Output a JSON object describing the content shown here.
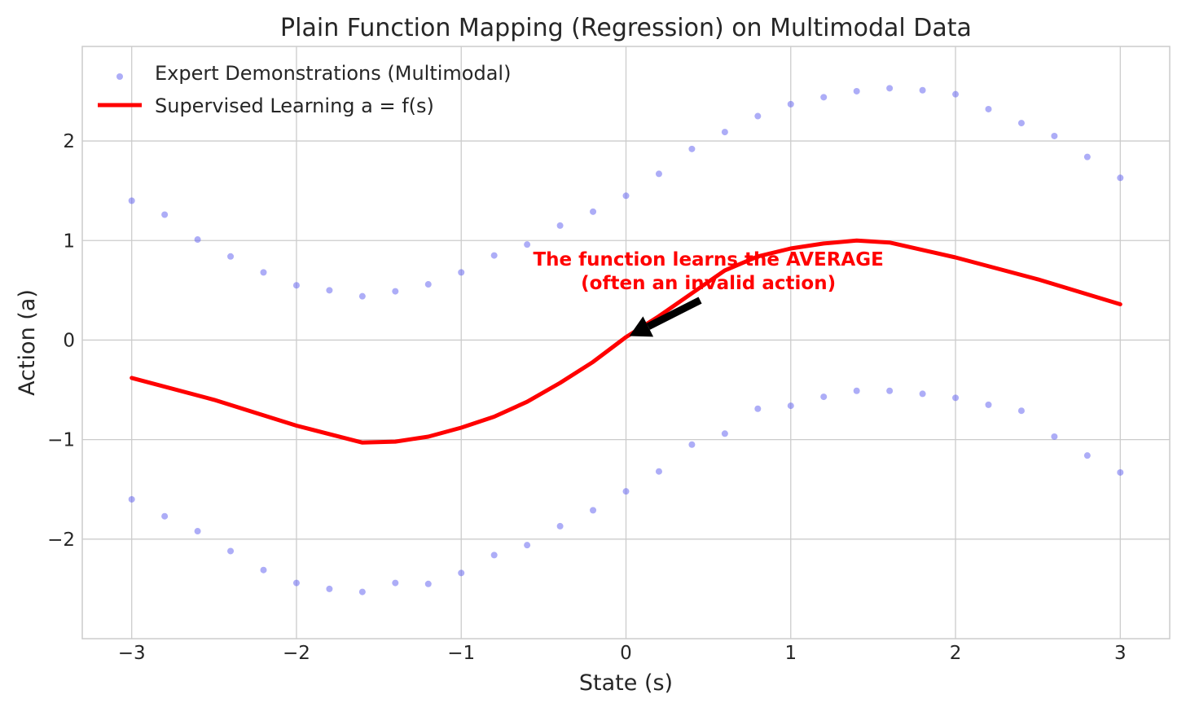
{
  "chart_data": {
    "type": "scatter",
    "title": "Plain Function Mapping (Regression) on Multimodal Data",
    "xlabel": "State (s)",
    "ylabel": "Action (a)",
    "xlim": [
      -3.3,
      3.3
    ],
    "ylim": [
      -3.0,
      2.95
    ],
    "xticks": [
      -3,
      -2,
      -1,
      0,
      1,
      2,
      3
    ],
    "xtick_labels": [
      "−3",
      "−2",
      "−1",
      "0",
      "1",
      "2",
      "3"
    ],
    "yticks": [
      -2,
      -1,
      0,
      1,
      2
    ],
    "ytick_labels": [
      "−2",
      "−1",
      "0",
      "1",
      "2"
    ],
    "grid": true,
    "legend_position": "top-left",
    "colors": {
      "scatter": "#5b5bf0",
      "regression": "#ff0000",
      "grid": "#cccccc",
      "axes_edge": "#cccccc",
      "annotation": "#ff0000",
      "arrow": "#000000"
    },
    "series": [
      {
        "name": "Expert Demonstrations (Multimodal)",
        "type": "scatter",
        "x": [
          -3.0,
          -2.8,
          -2.6,
          -2.4,
          -2.2,
          -2.0,
          -1.8,
          -1.6,
          -1.4,
          -1.2,
          -1.0,
          -0.8,
          -0.6,
          -0.4,
          -0.2,
          0.0,
          0.2,
          0.4,
          0.6,
          0.8,
          1.0,
          1.2,
          1.4,
          1.6,
          1.8,
          2.0,
          2.2,
          2.4,
          2.6,
          2.8,
          3.0,
          -3.0,
          -2.8,
          -2.6,
          -2.4,
          -2.2,
          -2.0,
          -1.8,
          -1.6,
          -1.4,
          -1.2,
          -1.0,
          -0.8,
          -0.6,
          -0.4,
          -0.2,
          0.0,
          0.2,
          0.4,
          0.6,
          0.8,
          1.0,
          1.2,
          1.4,
          1.6,
          1.8,
          2.0,
          2.2,
          2.4,
          2.6,
          2.8,
          3.0
        ],
        "y": [
          1.4,
          1.26,
          1.01,
          0.84,
          0.68,
          0.55,
          0.5,
          0.44,
          0.49,
          0.56,
          0.68,
          0.85,
          0.96,
          1.15,
          1.29,
          1.45,
          1.67,
          1.92,
          2.09,
          2.25,
          2.37,
          2.44,
          2.5,
          2.53,
          2.51,
          2.47,
          2.32,
          2.18,
          2.05,
          1.84,
          1.63,
          -1.6,
          -1.77,
          -1.92,
          -2.12,
          -2.31,
          -2.44,
          -2.5,
          -2.53,
          -2.44,
          -2.45,
          -2.34,
          -2.16,
          -2.06,
          -1.87,
          -1.71,
          -1.52,
          -1.32,
          -1.05,
          -0.94,
          -0.69,
          -0.66,
          -0.57,
          -0.51,
          -0.51,
          -0.54,
          -0.58,
          -0.65,
          -0.71,
          -0.97,
          -1.16,
          -1.33
        ]
      },
      {
        "name": "Supervised Learning a = f(s)",
        "type": "line",
        "x": [
          -3.0,
          -2.5,
          -2.0,
          -1.6,
          -1.4,
          -1.2,
          -1.0,
          -0.8,
          -0.6,
          -0.4,
          -0.2,
          0.0,
          0.2,
          0.4,
          0.6,
          0.8,
          1.0,
          1.2,
          1.4,
          1.6,
          2.0,
          2.5,
          3.0
        ],
        "y": [
          -0.38,
          -0.6,
          -0.86,
          -1.03,
          -1.02,
          -0.97,
          -0.88,
          -0.77,
          -0.62,
          -0.43,
          -0.22,
          0.03,
          0.24,
          0.47,
          0.7,
          0.84,
          0.92,
          0.97,
          1.0,
          0.98,
          0.83,
          0.61,
          0.36
        ]
      }
    ],
    "annotation": {
      "lines": [
        "The function learns the AVERAGE",
        "(often an invalid action)"
      ],
      "text_x": 0.5,
      "text_y": 0.58,
      "arrow_from": [
        0.45,
        0.4
      ],
      "arrow_to": [
        0.02,
        0.04
      ]
    }
  }
}
